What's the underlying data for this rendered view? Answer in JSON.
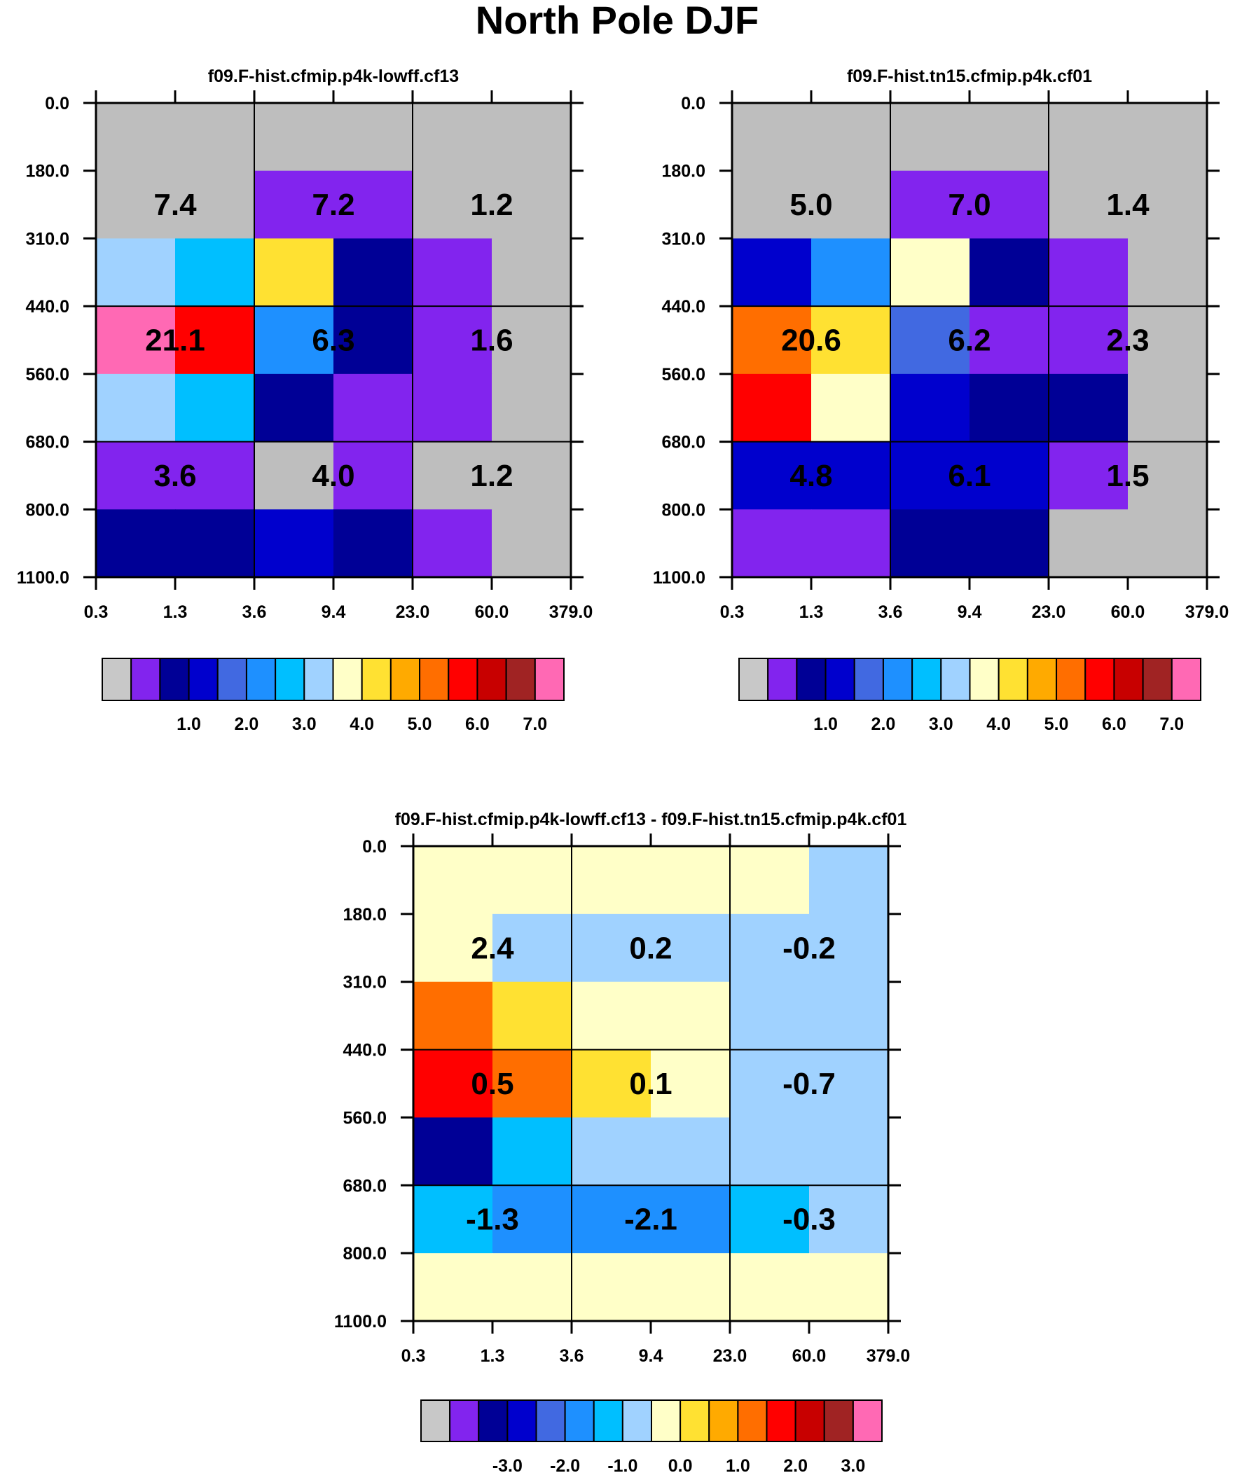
{
  "title": "North Pole DJF",
  "colors": {
    "background": "#ffffff",
    "missing": "#bebebe",
    "grid": "#000000"
  },
  "palette": [
    "#c8c8c8",
    "#8224ee",
    "#000096",
    "#0000cd",
    "#4169e1",
    "#1e90ff",
    "#00bfff",
    "#a0d2ff",
    "#ffffc8",
    "#ffe132",
    "#ffaa00",
    "#ff6e00",
    "#ff0000",
    "#c80000",
    "#a02323",
    "#ff69b4"
  ],
  "chart_data": [
    {
      "type": "heatmap",
      "title": "f09.F-hist.cfmip.p4k-lowff.cf13",
      "x_ticks": [
        "0.3",
        "1.3",
        "3.6",
        "9.4",
        "23.0",
        "60.0",
        "379.0"
      ],
      "y_ticks": [
        "0.0",
        "180.0",
        "310.0",
        "440.0",
        "560.0",
        "680.0",
        "800.0",
        "1100.0"
      ],
      "cells": [
        [
          0,
          0,
          0,
          0,
          0,
          0
        ],
        [
          0,
          0,
          1,
          1,
          0,
          0
        ],
        [
          7,
          6,
          9,
          2,
          1,
          0
        ],
        [
          15,
          12,
          5,
          2,
          1,
          0
        ],
        [
          7,
          6,
          2,
          1,
          1,
          0
        ],
        [
          1,
          1,
          0,
          1,
          0,
          0
        ],
        [
          2,
          2,
          3,
          2,
          1,
          0
        ]
      ],
      "annotations": [
        [
          "7.4",
          "7.2",
          "1.2"
        ],
        [
          "21.1",
          "6.3",
          "1.6"
        ],
        [
          "3.6",
          "4.0",
          "1.2"
        ]
      ],
      "colorbar_labels": [
        "1.0",
        "2.0",
        "3.0",
        "4.0",
        "5.0",
        "6.0",
        "7.0"
      ]
    },
    {
      "type": "heatmap",
      "title": "f09.F-hist.tn15.cfmip.p4k.cf01",
      "x_ticks": [
        "0.3",
        "1.3",
        "3.6",
        "9.4",
        "23.0",
        "60.0",
        "379.0"
      ],
      "y_ticks": [
        "0.0",
        "180.0",
        "310.0",
        "440.0",
        "560.0",
        "680.0",
        "800.0",
        "1100.0"
      ],
      "cells": [
        [
          0,
          0,
          0,
          0,
          0,
          0
        ],
        [
          0,
          0,
          1,
          1,
          0,
          0
        ],
        [
          3,
          5,
          8,
          2,
          1,
          0
        ],
        [
          11,
          9,
          4,
          1,
          1,
          0
        ],
        [
          12,
          8,
          3,
          2,
          2,
          0
        ],
        [
          3,
          3,
          3,
          3,
          1,
          0
        ],
        [
          1,
          1,
          2,
          2,
          0,
          0
        ]
      ],
      "annotations": [
        [
          "5.0",
          "7.0",
          "1.4"
        ],
        [
          "20.6",
          "6.2",
          "2.3"
        ],
        [
          "4.8",
          "6.1",
          "1.5"
        ]
      ],
      "colorbar_labels": [
        "1.0",
        "2.0",
        "3.0",
        "4.0",
        "5.0",
        "6.0",
        "7.0"
      ]
    },
    {
      "type": "heatmap",
      "title": "f09.F-hist.cfmip.p4k-lowff.cf13 - f09.F-hist.tn15.cfmip.p4k.cf01",
      "x_ticks": [
        "0.3",
        "1.3",
        "3.6",
        "9.4",
        "23.0",
        "60.0",
        "379.0"
      ],
      "y_ticks": [
        "0.0",
        "180.0",
        "310.0",
        "440.0",
        "560.0",
        "680.0",
        "800.0",
        "1100.0"
      ],
      "cells": [
        [
          8,
          8,
          8,
          8,
          8,
          7
        ],
        [
          8,
          7,
          7,
          7,
          7,
          7
        ],
        [
          11,
          9,
          8,
          8,
          7,
          7
        ],
        [
          12,
          11,
          9,
          8,
          7,
          7
        ],
        [
          2,
          6,
          7,
          7,
          7,
          7
        ],
        [
          6,
          5,
          5,
          5,
          6,
          7
        ],
        [
          8,
          8,
          8,
          8,
          8,
          8
        ]
      ],
      "annotations": [
        [
          "2.4",
          "0.2",
          "-0.2"
        ],
        [
          "0.5",
          "0.1",
          "-0.7"
        ],
        [
          "-1.3",
          "-2.1",
          "-0.3"
        ]
      ],
      "colorbar_labels": [
        "-3.0",
        "-2.0",
        "-1.0",
        "0.0",
        "1.0",
        "2.0",
        "3.0"
      ]
    }
  ]
}
